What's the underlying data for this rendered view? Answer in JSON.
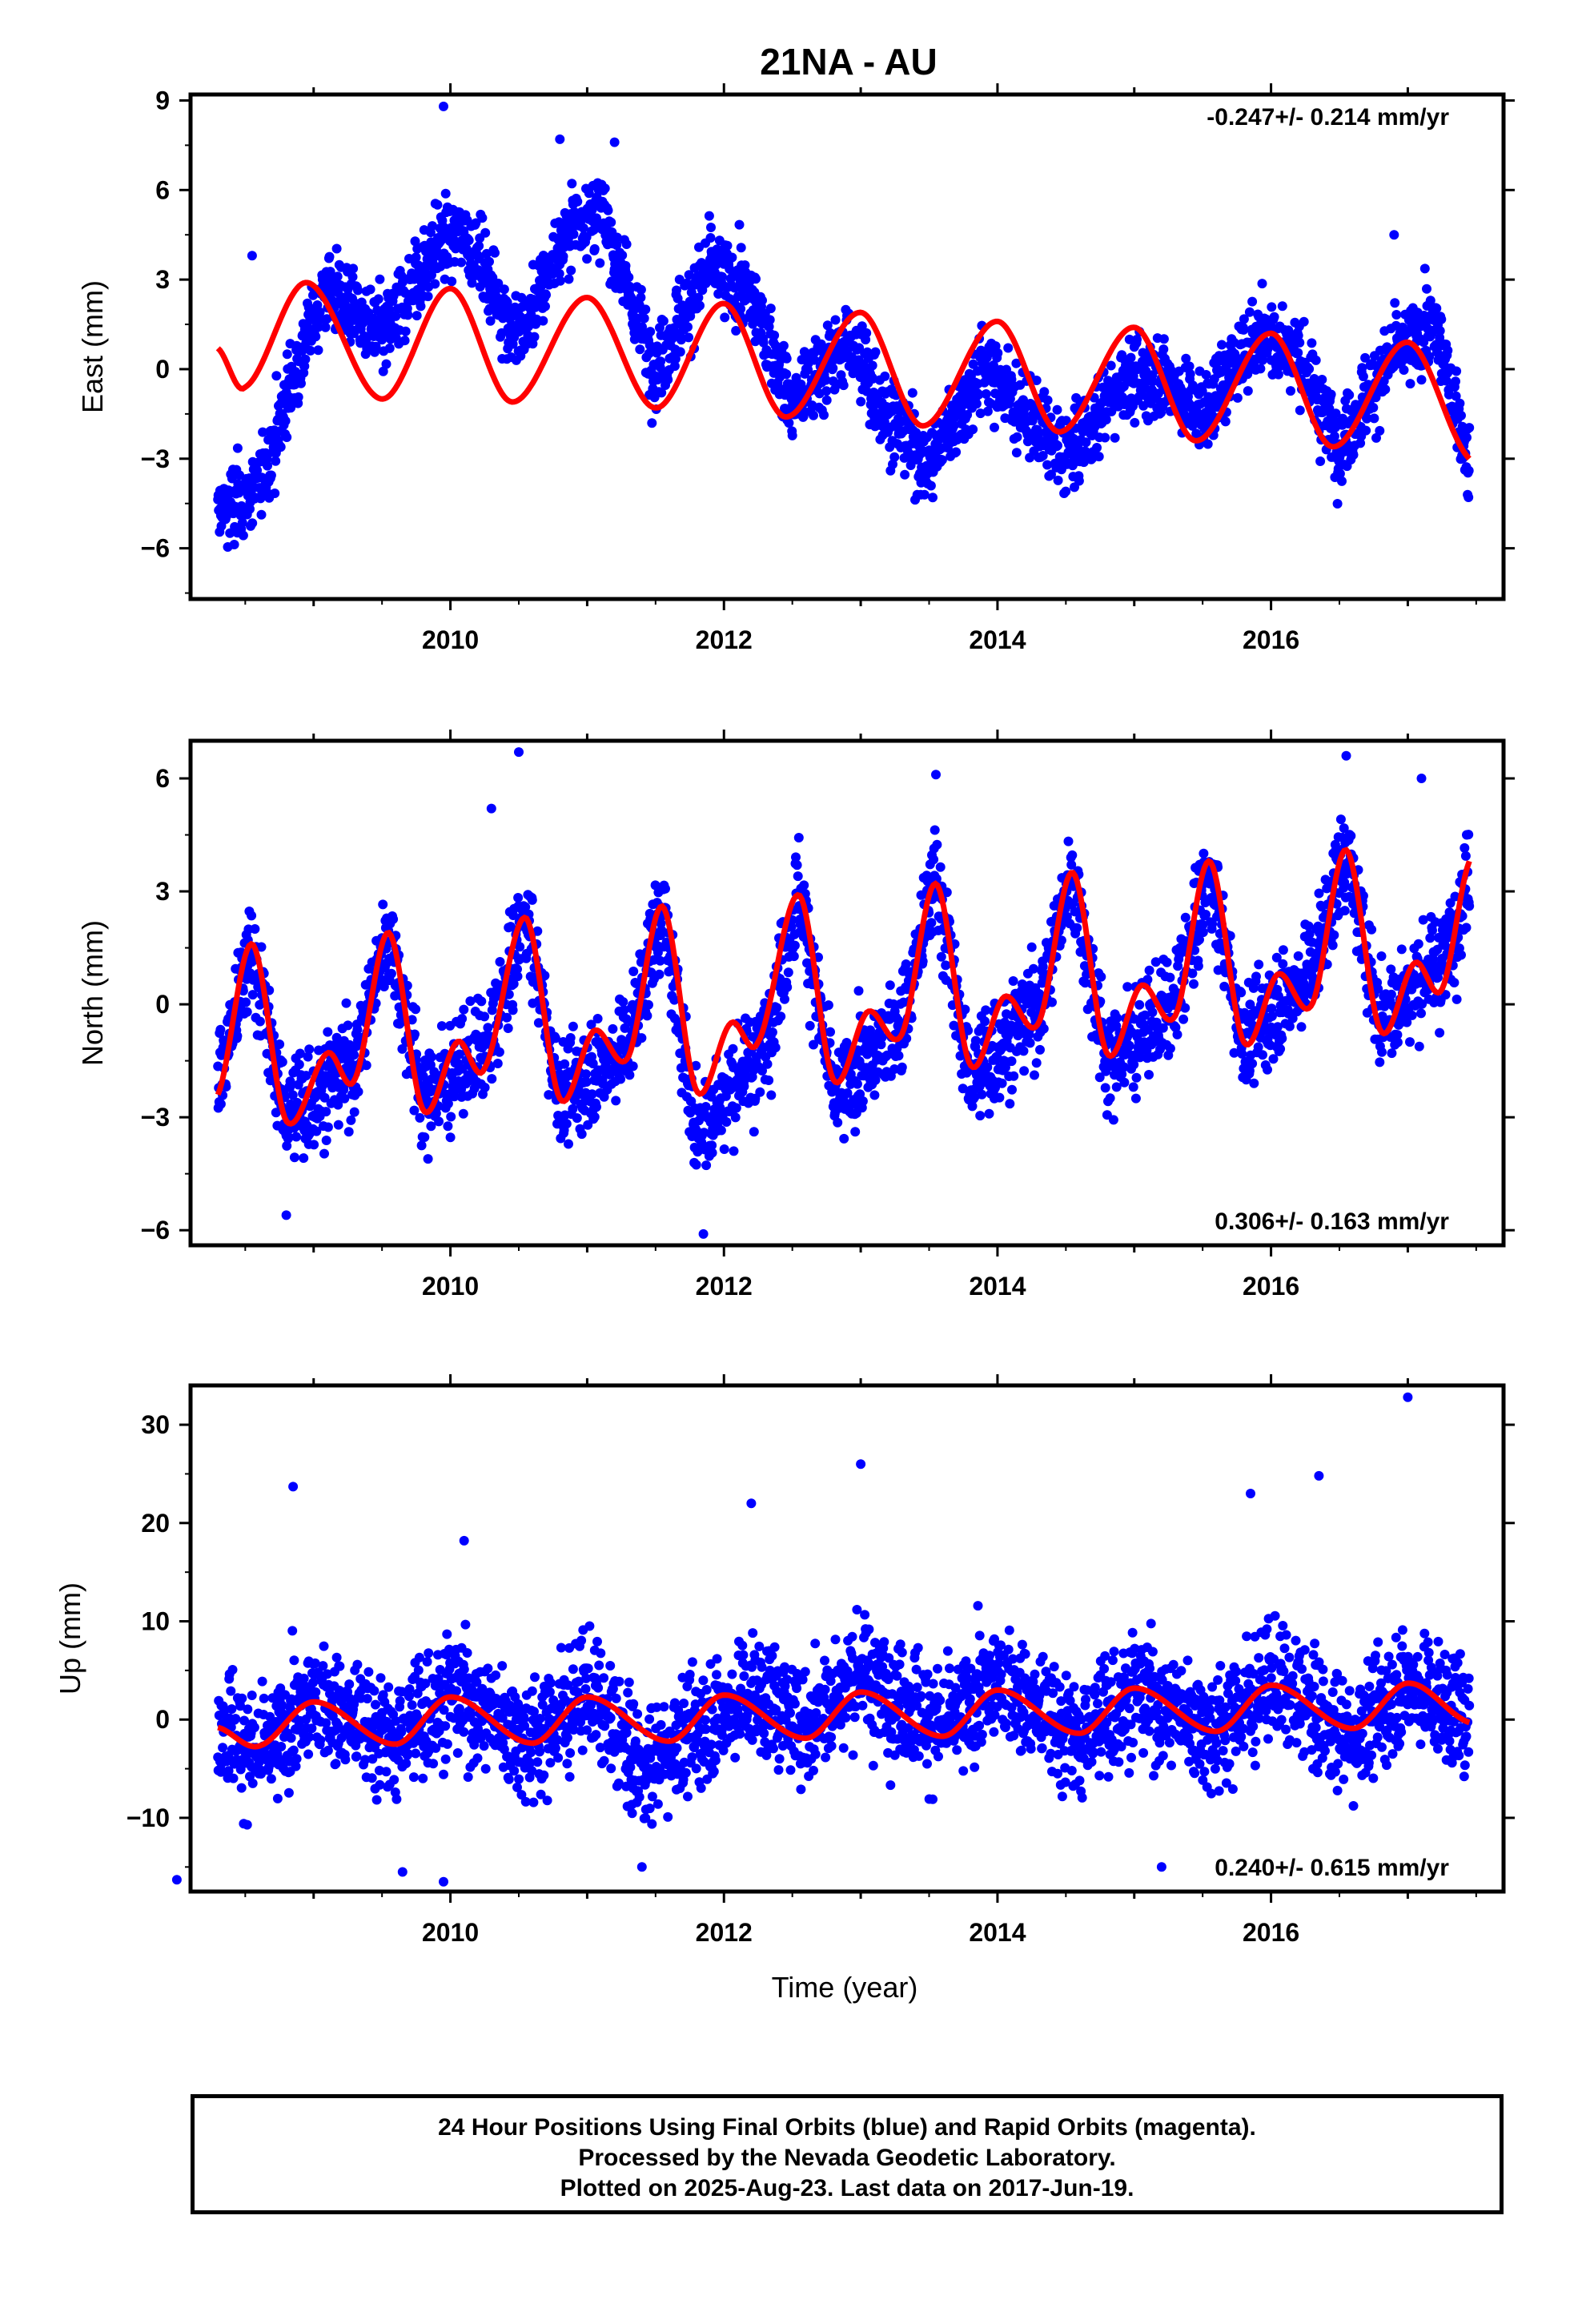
{
  "title": "21NA - AU",
  "chart_data": [
    {
      "type": "scatter",
      "component": "east",
      "ylabel": "East (mm)",
      "ylim": [
        -7.7,
        9.2
      ],
      "yticks": [
        -6,
        -3,
        0,
        3,
        6,
        9
      ],
      "xlim": [
        2008.1,
        2017.7
      ],
      "xticks": [
        2010,
        2012,
        2014,
        2016
      ],
      "rate_label": "-0.247+/- 0.214 mm/yr",
      "rate_position": "top-right",
      "point_color": "#0000ff",
      "model_color": "#ff0000",
      "model_curve": {
        "x": [
          2008.3,
          2008.5,
          2008.95,
          2009.5,
          2010.0,
          2010.45,
          2011.0,
          2011.5,
          2012.0,
          2012.45,
          2013.0,
          2013.45,
          2014.0,
          2014.45,
          2015.0,
          2015.45,
          2016.0,
          2016.45,
          2017.0,
          2017.45
        ],
        "y": [
          0.7,
          -0.6,
          2.9,
          -1.0,
          2.7,
          -1.1,
          2.4,
          -1.3,
          2.2,
          -1.6,
          1.9,
          -1.9,
          1.6,
          -2.1,
          1.4,
          -2.4,
          1.2,
          -2.6,
          0.9,
          -3.0
        ]
      },
      "observations_trend": {
        "x": [
          2008.3,
          2008.6,
          2008.9,
          2009.1,
          2009.5,
          2009.9,
          2010.1,
          2010.5,
          2010.9,
          2011.1,
          2011.5,
          2011.9,
          2012.2,
          2012.5,
          2012.9,
          2013.2,
          2013.5,
          2013.9,
          2014.2,
          2014.5,
          2014.9,
          2015.2,
          2015.5,
          2015.9,
          2016.2,
          2016.5,
          2016.9,
          2017.2,
          2017.45
        ],
        "y": [
          -4.8,
          -4.0,
          0.5,
          2.8,
          1.0,
          4.2,
          4.6,
          1.0,
          5.0,
          5.2,
          0.0,
          3.5,
          2.4,
          -1.2,
          1.0,
          -1.5,
          -3.2,
          0.2,
          -1.5,
          -3.0,
          -0.5,
          -0.2,
          -1.5,
          1.2,
          0.5,
          -2.5,
          0.5,
          1.5,
          -3.2
        ]
      },
      "outliers": [
        [
          2009.95,
          8.8
        ],
        [
          2008.55,
          3.8
        ],
        [
          2011.2,
          7.6
        ],
        [
          2010.8,
          7.7
        ],
        [
          2016.9,
          4.5
        ]
      ]
    },
    {
      "type": "scatter",
      "component": "north",
      "ylabel": "North (mm)",
      "ylim": [
        -6.4,
        7.0
      ],
      "yticks": [
        -6,
        -3,
        0,
        3,
        6
      ],
      "xlim": [
        2008.1,
        2017.7
      ],
      "xticks": [
        2010,
        2012,
        2014,
        2016
      ],
      "rate_label": "0.306+/- 0.163 mm/yr",
      "rate_position": "bottom-right",
      "point_color": "#0000ff",
      "model_color": "#ff0000",
      "model_curve": {
        "x": [
          2008.3,
          2008.55,
          2008.8,
          2009.1,
          2009.3,
          2009.55,
          2009.8,
          2010.05,
          2010.25,
          2010.55,
          2010.8,
          2011.05,
          2011.3,
          2011.55,
          2011.8,
          2012.05,
          2012.25,
          2012.55,
          2012.8,
          2013.05,
          2013.3,
          2013.55,
          2013.8,
          2014.05,
          2014.3,
          2014.55,
          2014.8,
          2015.05,
          2015.3,
          2015.55,
          2015.8,
          2016.05,
          2016.3,
          2016.55,
          2016.8,
          2017.05,
          2017.25,
          2017.45
        ],
        "y": [
          -2.4,
          1.6,
          -3.1,
          -1.3,
          -2.0,
          1.9,
          -2.8,
          -1.0,
          -1.7,
          2.3,
          -2.5,
          -0.7,
          -1.4,
          2.6,
          -2.3,
          -0.5,
          -1.0,
          2.9,
          -2.0,
          -0.2,
          -0.8,
          3.2,
          -1.6,
          0.2,
          -0.5,
          3.5,
          -1.3,
          0.5,
          -0.3,
          3.8,
          -1.0,
          0.8,
          0.0,
          4.1,
          -0.7,
          1.1,
          0.4,
          3.8
        ]
      },
      "observations_trend": {
        "x": [
          2008.3,
          2008.55,
          2008.8,
          2009.3,
          2009.55,
          2009.8,
          2010.3,
          2010.55,
          2010.8,
          2011.3,
          2011.55,
          2011.8,
          2012.3,
          2012.55,
          2012.8,
          2013.3,
          2013.55,
          2013.8,
          2014.3,
          2014.55,
          2014.8,
          2015.3,
          2015.55,
          2015.8,
          2016.3,
          2016.55,
          2016.8,
          2017.3,
          2017.45
        ],
        "y": [
          -2.0,
          1.5,
          -3.0,
          -1.5,
          2.0,
          -2.5,
          -1.0,
          2.5,
          -2.5,
          -1.0,
          2.5,
          -3.5,
          -1.0,
          3.0,
          -2.5,
          -0.5,
          3.5,
          -2.0,
          0.0,
          3.5,
          -1.5,
          0.0,
          3.5,
          -1.0,
          1.0,
          4.0,
          -0.5,
          1.5,
          3.5
        ]
      },
      "outliers": [
        [
          2010.5,
          6.7
        ],
        [
          2013.55,
          6.1
        ],
        [
          2016.55,
          6.6
        ],
        [
          2011.85,
          -6.1
        ],
        [
          2008.8,
          -5.6
        ],
        [
          2010.3,
          5.2
        ],
        [
          2017.1,
          6.0
        ]
      ]
    },
    {
      "type": "scatter",
      "component": "up",
      "ylabel": "Up (mm)",
      "xlabel": "Time (year)",
      "ylim": [
        -17.5,
        34
      ],
      "yticks": [
        -10,
        0,
        10,
        20,
        30
      ],
      "xlim": [
        2008.1,
        2017.7
      ],
      "xticks": [
        2010,
        2012,
        2014,
        2016
      ],
      "rate_label": "0.240+/- 0.615 mm/yr",
      "rate_position": "bottom-right",
      "point_color": "#0000ff",
      "model_color": "#ff0000",
      "model_curve": {
        "x": [
          2008.3,
          2008.6,
          2009.0,
          2009.6,
          2010.0,
          2010.6,
          2011.0,
          2011.6,
          2012.0,
          2012.6,
          2013.0,
          2013.6,
          2014.0,
          2014.6,
          2015.0,
          2015.6,
          2016.0,
          2016.6,
          2017.0,
          2017.45
        ],
        "y": [
          -0.8,
          -2.7,
          1.8,
          -2.5,
          2.3,
          -2.4,
          2.3,
          -2.2,
          2.5,
          -1.9,
          2.8,
          -1.7,
          3.0,
          -1.4,
          3.2,
          -1.2,
          3.5,
          -0.9,
          3.7,
          -0.3
        ]
      },
      "observations_trend": {
        "x": [
          2008.3,
          2008.6,
          2009.0,
          2009.6,
          2010.0,
          2010.6,
          2011.0,
          2011.4,
          2011.8,
          2012.2,
          2012.6,
          2013.0,
          2013.6,
          2014.0,
          2014.6,
          2015.0,
          2015.6,
          2016.0,
          2016.6,
          2017.0,
          2017.45
        ],
        "y": [
          0.0,
          -4.0,
          2.0,
          -2.0,
          3.0,
          -2.0,
          3.0,
          -5.0,
          -1.0,
          3.0,
          -1.0,
          5.0,
          -1.0,
          4.0,
          -2.0,
          3.0,
          -1.0,
          4.0,
          -2.0,
          4.0,
          0.0
        ]
      },
      "outliers": [
        [
          2008.85,
          23.7
        ],
        [
          2013.0,
          26.0
        ],
        [
          2015.85,
          23.0
        ],
        [
          2016.35,
          24.8
        ],
        [
          2017.0,
          32.8
        ],
        [
          2008.0,
          -16.3
        ],
        [
          2009.65,
          -15.5
        ],
        [
          2009.95,
          -16.5
        ],
        [
          2011.4,
          -15.0
        ],
        [
          2015.2,
          -15.0
        ],
        [
          2012.2,
          22.0
        ],
        [
          2010.1,
          18.2
        ]
      ]
    }
  ],
  "footer": {
    "line1": "24 Hour Positions Using Final Orbits (blue) and Rapid Orbits (magenta).",
    "line2": "Processed by the Nevada Geodetic Laboratory.",
    "line3": "Plotted on 2025-Aug-23. Last data on 2017-Jun-19."
  }
}
